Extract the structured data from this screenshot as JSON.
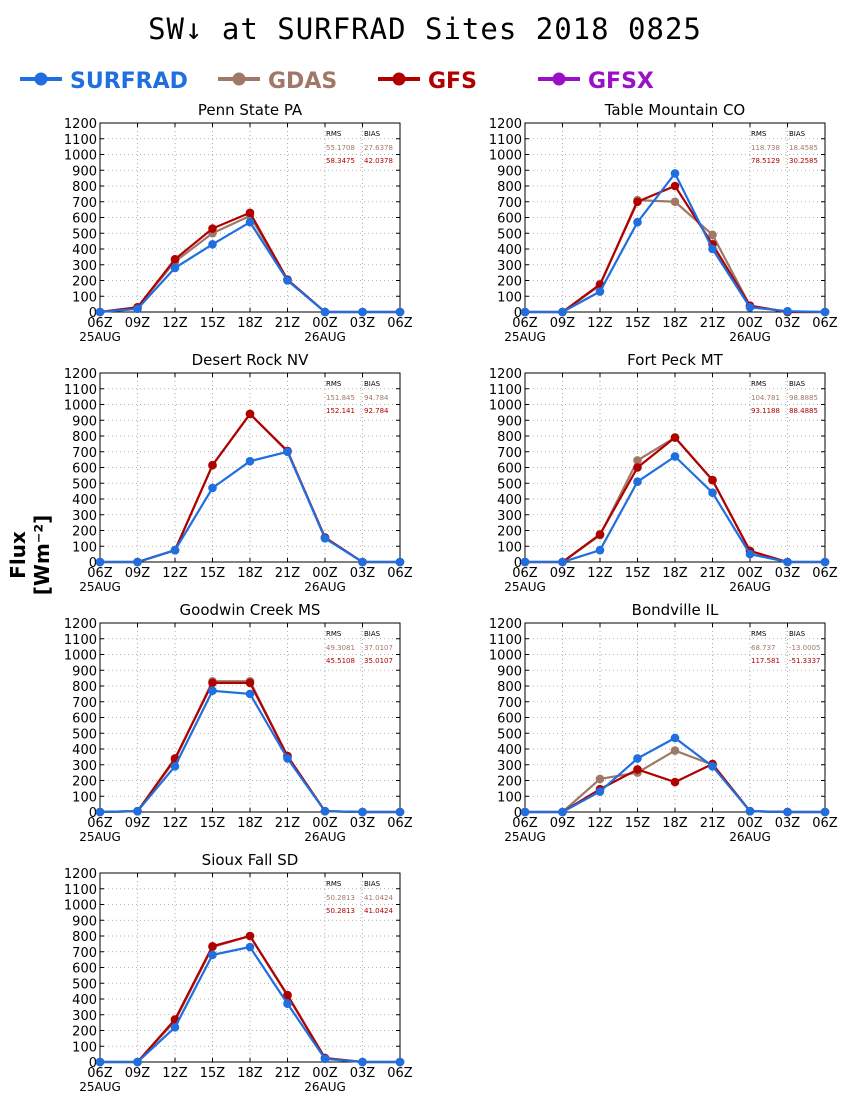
{
  "title": "SW↓ at SURFRAD Sites     2018 0825",
  "ylabel": "Flux [Wm⁻²]",
  "colors": {
    "SURFRAD": "#1f6fe0",
    "GDAS": "#a07868",
    "GFS": "#b00000",
    "GFSX": "#9a10c8"
  },
  "legend": [
    {
      "key": "SURFRAD",
      "label": "SURFRAD"
    },
    {
      "key": "GDAS",
      "label": "GDAS"
    },
    {
      "key": "GFS",
      "label": "GFS"
    },
    {
      "key": "GFSX",
      "label": "GFSX"
    }
  ],
  "stats_headers": {
    "rms": "RMS",
    "bias": "BIAS"
  },
  "chart_data": [
    {
      "type": "line",
      "title": "Penn State PA",
      "x": [
        "06Z",
        "09Z",
        "12Z",
        "15Z",
        "18Z",
        "21Z",
        "00Z",
        "03Z",
        "06Z"
      ],
      "date_labels": [
        "25AUG",
        "26AUG"
      ],
      "ylim": [
        0,
        1200
      ],
      "yticks": [
        0,
        100,
        200,
        300,
        400,
        500,
        600,
        700,
        800,
        900,
        1000,
        1100,
        1200
      ],
      "series": [
        {
          "name": "SURFRAD",
          "values": [
            0,
            20,
            280,
            430,
            570,
            200,
            0,
            0,
            0
          ]
        },
        {
          "name": "GDAS",
          "values": [
            0,
            30,
            320,
            500,
            610,
            205,
            0,
            0,
            0
          ]
        },
        {
          "name": "GFS",
          "values": [
            0,
            30,
            335,
            530,
            630,
            205,
            0,
            0,
            0
          ]
        }
      ],
      "stats": [
        {
          "model": "GDAS",
          "rms": "55.1708",
          "bias": "27.6378"
        },
        {
          "model": "GFS",
          "rms": "58.3475",
          "bias": "42.0378"
        }
      ]
    },
    {
      "type": "line",
      "title": "Table Mountain CO",
      "x": [
        "06Z",
        "09Z",
        "12Z",
        "15Z",
        "18Z",
        "21Z",
        "00Z",
        "03Z",
        "06Z"
      ],
      "date_labels": [
        "25AUG",
        "26AUG"
      ],
      "ylim": [
        0,
        1200
      ],
      "yticks": [
        0,
        100,
        200,
        300,
        400,
        500,
        600,
        700,
        800,
        900,
        1000,
        1100,
        1200
      ],
      "series": [
        {
          "name": "SURFRAD",
          "values": [
            0,
            0,
            130,
            570,
            880,
            400,
            30,
            5,
            0
          ]
        },
        {
          "name": "GDAS",
          "values": [
            0,
            0,
            170,
            710,
            700,
            490,
            40,
            0,
            0
          ]
        },
        {
          "name": "GFS",
          "values": [
            0,
            0,
            175,
            700,
            800,
            430,
            40,
            0,
            0
          ]
        }
      ],
      "stats": [
        {
          "model": "GDAS",
          "rms": "118.738",
          "bias": "18.4585"
        },
        {
          "model": "GFS",
          "rms": "78.5129",
          "bias": "30.2585"
        }
      ]
    },
    {
      "type": "line",
      "title": "Desert Rock NV",
      "x": [
        "06Z",
        "09Z",
        "12Z",
        "15Z",
        "18Z",
        "21Z",
        "00Z",
        "03Z",
        "06Z"
      ],
      "date_labels": [
        "25AUG",
        "26AUG"
      ],
      "ylim": [
        0,
        1200
      ],
      "yticks": [
        0,
        100,
        200,
        300,
        400,
        500,
        600,
        700,
        800,
        900,
        1000,
        1100,
        1200
      ],
      "series": [
        {
          "name": "SURFRAD",
          "values": [
            0,
            0,
            75,
            470,
            640,
            700,
            150,
            0,
            0
          ]
        },
        {
          "name": "GDAS",
          "values": [
            0,
            0,
            75,
            615,
            940,
            700,
            155,
            0,
            0
          ]
        },
        {
          "name": "GFS",
          "values": [
            0,
            0,
            75,
            615,
            940,
            705,
            155,
            0,
            0
          ]
        }
      ],
      "stats": [
        {
          "model": "GDAS",
          "rms": "151.845",
          "bias": "94.784"
        },
        {
          "model": "GFS",
          "rms": "152.141",
          "bias": "92.784"
        }
      ]
    },
    {
      "type": "line",
      "title": "Fort Peck MT",
      "x": [
        "06Z",
        "09Z",
        "12Z",
        "15Z",
        "18Z",
        "21Z",
        "00Z",
        "03Z",
        "06Z"
      ],
      "date_labels": [
        "25AUG",
        "26AUG"
      ],
      "ylim": [
        0,
        1200
      ],
      "yticks": [
        0,
        100,
        200,
        300,
        400,
        500,
        600,
        700,
        800,
        900,
        1000,
        1100,
        1200
      ],
      "series": [
        {
          "name": "SURFRAD",
          "values": [
            0,
            0,
            75,
            510,
            670,
            440,
            50,
            0,
            0
          ]
        },
        {
          "name": "GDAS",
          "values": [
            0,
            0,
            170,
            645,
            790,
            520,
            70,
            0,
            0
          ]
        },
        {
          "name": "GFS",
          "values": [
            0,
            0,
            175,
            600,
            790,
            520,
            70,
            0,
            0
          ]
        }
      ],
      "stats": [
        {
          "model": "GDAS",
          "rms": "104.781",
          "bias": "98.8885"
        },
        {
          "model": "GFS",
          "rms": "93.1188",
          "bias": "88.4885"
        }
      ]
    },
    {
      "type": "line",
      "title": "Goodwin Creek MS",
      "x": [
        "06Z",
        "09Z",
        "12Z",
        "15Z",
        "18Z",
        "21Z",
        "00Z",
        "03Z",
        "06Z"
      ],
      "date_labels": [
        "25AUG",
        "26AUG"
      ],
      "ylim": [
        0,
        1200
      ],
      "yticks": [
        0,
        100,
        200,
        300,
        400,
        500,
        600,
        700,
        800,
        900,
        1000,
        1100,
        1200
      ],
      "series": [
        {
          "name": "SURFRAD",
          "values": [
            0,
            5,
            290,
            770,
            750,
            340,
            5,
            0,
            0
          ]
        },
        {
          "name": "GDAS",
          "values": [
            0,
            5,
            330,
            830,
            830,
            355,
            5,
            0,
            0
          ]
        },
        {
          "name": "GFS",
          "values": [
            0,
            5,
            340,
            820,
            820,
            355,
            5,
            0,
            0
          ]
        }
      ],
      "stats": [
        {
          "model": "GDAS",
          "rms": "49.3081",
          "bias": "37.0107"
        },
        {
          "model": "GFS",
          "rms": "45.5108",
          "bias": "35.0107"
        }
      ]
    },
    {
      "type": "line",
      "title": "Bondville IL",
      "x": [
        "06Z",
        "09Z",
        "12Z",
        "15Z",
        "18Z",
        "21Z",
        "00Z",
        "03Z",
        "06Z"
      ],
      "date_labels": [
        "25AUG",
        "26AUG"
      ],
      "ylim": [
        0,
        1200
      ],
      "yticks": [
        0,
        100,
        200,
        300,
        400,
        500,
        600,
        700,
        800,
        900,
        1000,
        1100,
        1200
      ],
      "series": [
        {
          "name": "SURFRAD",
          "values": [
            0,
            0,
            130,
            340,
            470,
            290,
            5,
            0,
            0
          ]
        },
        {
          "name": "GDAS",
          "values": [
            0,
            0,
            210,
            250,
            390,
            300,
            5,
            0,
            0
          ]
        },
        {
          "name": "GFS",
          "values": [
            0,
            0,
            145,
            270,
            190,
            305,
            5,
            0,
            0
          ]
        }
      ],
      "stats": [
        {
          "model": "GDAS",
          "rms": "68.737",
          "bias": "-13.0005"
        },
        {
          "model": "GFS",
          "rms": "117.581",
          "bias": "-51.3337"
        }
      ]
    },
    {
      "type": "line",
      "title": "Sioux Fall SD",
      "x": [
        "06Z",
        "09Z",
        "12Z",
        "15Z",
        "18Z",
        "21Z",
        "00Z",
        "03Z",
        "06Z"
      ],
      "date_labels": [
        "25AUG",
        "26AUG"
      ],
      "ylim": [
        0,
        1200
      ],
      "yticks": [
        0,
        100,
        200,
        300,
        400,
        500,
        600,
        700,
        800,
        900,
        1000,
        1100,
        1200
      ],
      "series": [
        {
          "name": "SURFRAD",
          "values": [
            0,
            0,
            220,
            680,
            730,
            370,
            20,
            0,
            0
          ]
        },
        {
          "name": "GDAS",
          "values": [
            0,
            0,
            260,
            730,
            800,
            420,
            25,
            0,
            0
          ]
        },
        {
          "name": "GFS",
          "values": [
            0,
            0,
            270,
            735,
            800,
            425,
            25,
            0,
            0
          ]
        }
      ],
      "stats": [
        {
          "model": "GDAS",
          "rms": "50.2813",
          "bias": "41.0424"
        },
        {
          "model": "GFS",
          "rms": "50.2813",
          "bias": "41.0424"
        }
      ]
    }
  ]
}
